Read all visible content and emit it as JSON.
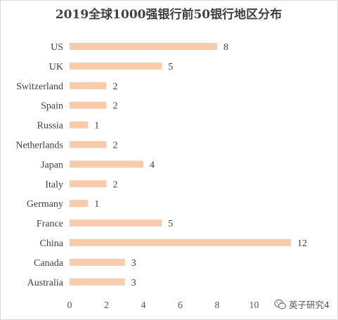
{
  "chart_data": {
    "type": "bar",
    "orientation": "horizontal",
    "title": "2019全球1000强银行前50银行地区分布",
    "categories": [
      "US",
      "UK",
      "Switzerland",
      "Spain",
      "Russia",
      "Netherlands",
      "Japan",
      "Italy",
      "Germany",
      "France",
      "China",
      "Canada",
      "Australia"
    ],
    "values": [
      8,
      5,
      2,
      2,
      1,
      2,
      4,
      2,
      1,
      5,
      12,
      3,
      3
    ],
    "xlim": [
      0,
      12
    ],
    "xticks": [
      0,
      2,
      4,
      6,
      8,
      10
    ],
    "grid": false,
    "legend": "none",
    "bar_color": "#f8cbad",
    "data_labels": true
  },
  "watermark": {
    "icon": "wechat-icon",
    "text": "英子研究4"
  }
}
